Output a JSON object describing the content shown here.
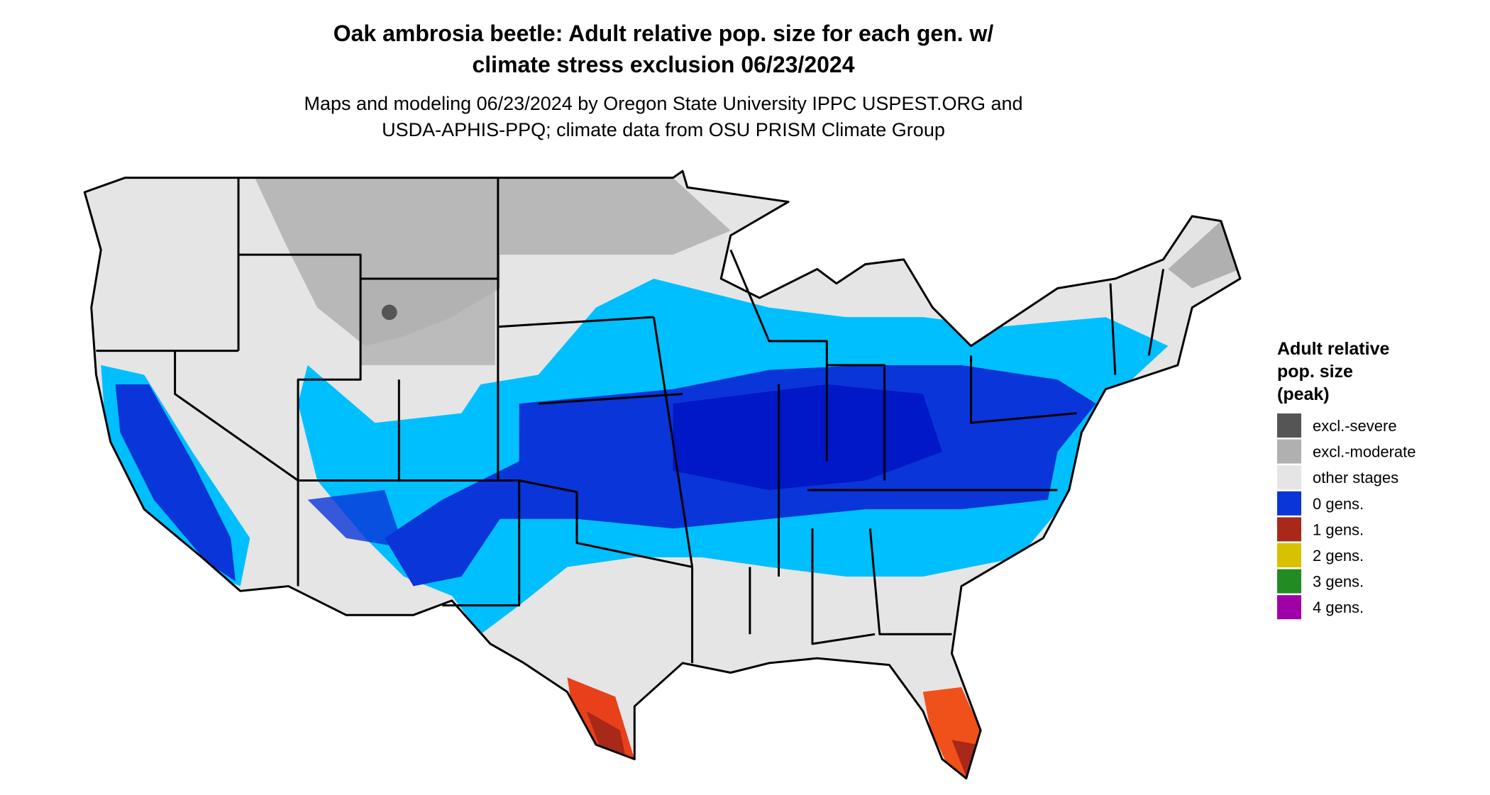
{
  "header": {
    "title_lines": [
      "Oak ambrosia beetle: Adult relative pop. size for each gen. w/",
      "climate stress exclusion 06/23/2024"
    ],
    "subtitle_lines": [
      "Maps and modeling 06/23/2024 by Oregon State University IPPC USPEST.ORG and",
      "USDA-APHIS-PPQ; climate data from OSU PRISM Climate Group"
    ]
  },
  "legend": {
    "title_lines": [
      "Adult relative",
      "pop. size",
      "(peak)"
    ],
    "items": [
      {
        "label": "excl.-severe",
        "color": "#555555"
      },
      {
        "label": "excl.-moderate",
        "color": "#b0b0b0"
      },
      {
        "label": "other stages",
        "color": "#e5e5e5"
      },
      {
        "label": "0 gens.",
        "color": "#0a35d8"
      },
      {
        "label": "1 gens.",
        "color": "#a8281a"
      },
      {
        "label": "2 gens.",
        "color": "#d7c100"
      },
      {
        "label": "3 gens.",
        "color": "#228b22"
      },
      {
        "label": "4 gens.",
        "color": "#a000a8"
      }
    ]
  }
}
